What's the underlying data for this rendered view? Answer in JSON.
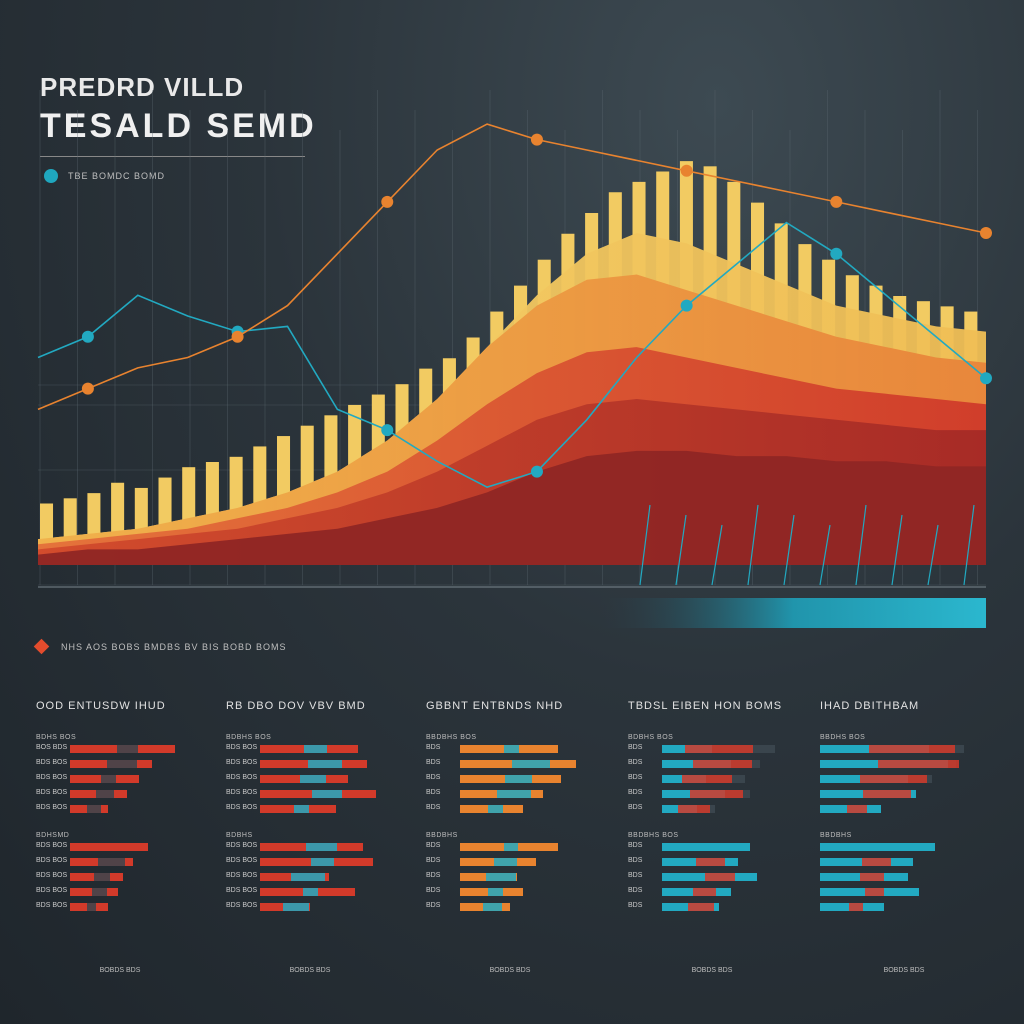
{
  "header": {
    "title_line1": "PREDRD VILLD",
    "title_line2": "TESALD SEMD",
    "legend_label": "TBE BOMDC BOMD"
  },
  "footer_legend": {
    "label": "NHS AOS BOBS BMDBS BV BIS BOBD BOMS"
  },
  "colors": {
    "background": "#2b343b",
    "teal": "#22a9c1",
    "red": "#d23a2a",
    "orange": "#e8832f",
    "yellow": "#efc65a",
    "orange_line": "#e0562a",
    "gold_line": "#e89a2e",
    "grey_track": "#3a454d"
  },
  "chart_data": [
    {
      "type": "area",
      "title": "",
      "x": [
        0,
        1,
        2,
        3,
        4,
        5,
        6,
        7,
        8,
        9,
        10,
        11,
        12,
        13,
        14,
        15,
        16,
        17,
        18,
        19
      ],
      "series": [
        {
          "values": [
            5,
            6,
            7,
            9,
            11,
            14,
            18,
            24,
            32,
            42,
            52,
            60,
            64,
            62,
            58,
            54,
            50,
            48,
            46,
            45
          ]
        },
        {
          "values": [
            5,
            6,
            7,
            9,
            11,
            14,
            18,
            24,
            32,
            42,
            50,
            55,
            56,
            53,
            50,
            47,
            44,
            42,
            40,
            39
          ]
        },
        {
          "values": [
            4,
            5,
            6,
            7,
            9,
            11,
            14,
            18,
            24,
            31,
            37,
            41,
            42,
            40,
            38,
            36,
            34,
            33,
            32,
            31
          ]
        },
        {
          "values": [
            3,
            4,
            5,
            6,
            7,
            9,
            11,
            14,
            18,
            23,
            28,
            31,
            32,
            31,
            30,
            29,
            28,
            27,
            26,
            26
          ]
        },
        {
          "values": [
            2,
            3,
            3,
            4,
            5,
            6,
            7,
            9,
            11,
            14,
            18,
            21,
            22,
            22,
            21,
            21,
            20,
            20,
            19,
            19
          ]
        }
      ],
      "bars": [
        8,
        9,
        10,
        12,
        11,
        13,
        15,
        16,
        17,
        19,
        21,
        23,
        25,
        27,
        29,
        31,
        34,
        36,
        40,
        45,
        50,
        55,
        60,
        64,
        68,
        70,
        72,
        74,
        73,
        70,
        66,
        62,
        58,
        55,
        52,
        50,
        48,
        47,
        46,
        45
      ],
      "lines": [
        {
          "color": "teal",
          "values": [
            40,
            44,
            52,
            48,
            45,
            46,
            30,
            26,
            20,
            15,
            18,
            28,
            40,
            50,
            58,
            66,
            60,
            52,
            44,
            36
          ]
        },
        {
          "color": "orange",
          "values": [
            30,
            34,
            38,
            40,
            44,
            50,
            60,
            70,
            80,
            85,
            82,
            80,
            78,
            76,
            74,
            72,
            70,
            68,
            66,
            64
          ]
        }
      ]
    },
    {
      "type": "bar",
      "panel_title": "OOD ENTUSDW IHUD",
      "groups": [
        {
          "label": "BDHS BOS",
          "rows": [
            {
              "label": "BOS BDS",
              "values": [
                0.83,
                0.28
              ]
            },
            {
              "label": "BDS BOS",
              "values": [
                0.65,
                0.4
              ]
            },
            {
              "label": "BDS BOS",
              "values": [
                0.55,
                0.2
              ]
            },
            {
              "label": "BDS BOS",
              "values": [
                0.45,
                0.25
              ]
            },
            {
              "label": "BDS BOS",
              "values": [
                0.3,
                0.18
              ]
            }
          ]
        },
        {
          "label": "BDHSMD",
          "rows": [
            {
              "label": "BDS BOS",
              "values": [
                0.62,
                0.0
              ]
            },
            {
              "label": "BDS BOS",
              "values": [
                0.5,
                0.35
              ]
            },
            {
              "label": "BDS BOS",
              "values": [
                0.42,
                0.22
              ]
            },
            {
              "label": "BDS BOS",
              "values": [
                0.38,
                0.2
              ]
            },
            {
              "label": "BDS BOS",
              "values": [
                0.3,
                0.12
              ]
            }
          ]
        }
      ],
      "footer": "BOBDS BDS"
    },
    {
      "type": "bar",
      "panel_title": "RB DBO DOV VBV BMD",
      "groups": [
        {
          "label": "BDBHS BOS",
          "rows": [
            {
              "label": "BDS BOS",
              "values": [
                0.78,
                0.3
              ]
            },
            {
              "label": "BDS BOS",
              "values": [
                0.85,
                0.45
              ]
            },
            {
              "label": "BDS BOS",
              "values": [
                0.7,
                0.35
              ]
            },
            {
              "label": "BDS BOS",
              "values": [
                0.92,
                0.4
              ]
            },
            {
              "label": "BDS BOS",
              "values": [
                0.6,
                0.2
              ]
            }
          ]
        },
        {
          "label": "BDBHS",
          "rows": [
            {
              "label": "BDS BOS",
              "values": [
                0.82,
                0.4
              ]
            },
            {
              "label": "BDS BOS",
              "values": [
                0.9,
                0.3
              ]
            },
            {
              "label": "BDS BOS",
              "values": [
                0.55,
                0.45
              ]
            },
            {
              "label": "BDS BOS",
              "values": [
                0.75,
                0.2
              ]
            },
            {
              "label": "BDS BOS",
              "values": [
                0.4,
                0.35
              ]
            }
          ]
        }
      ],
      "footer": "BOBDS BDS"
    },
    {
      "type": "bar",
      "panel_title": "GBBNT ENTBNDS NHD",
      "groups": [
        {
          "label": "BBDBHS BOS",
          "rows": [
            {
              "label": "BDS",
              "values": [
                0.78,
                0.2
              ]
            },
            {
              "label": "BDS",
              "values": [
                0.92,
                0.5
              ]
            },
            {
              "label": "BDS",
              "values": [
                0.8,
                0.35
              ]
            },
            {
              "label": "BDS",
              "values": [
                0.66,
                0.45
              ]
            },
            {
              "label": "BDS",
              "values": [
                0.5,
                0.2
              ]
            }
          ]
        },
        {
          "label": "BBDBHS",
          "rows": [
            {
              "label": "BDS",
              "values": [
                0.78,
                0.18
              ]
            },
            {
              "label": "BDS",
              "values": [
                0.6,
                0.3
              ]
            },
            {
              "label": "BDS",
              "values": [
                0.45,
                0.4
              ]
            },
            {
              "label": "BDS",
              "values": [
                0.5,
                0.2
              ]
            },
            {
              "label": "BDS",
              "values": [
                0.4,
                0.25
              ]
            }
          ]
        }
      ],
      "footer": "BOBDS BDS"
    },
    {
      "type": "bar",
      "panel_title": "TBDSL EIBEN HON BOMS",
      "groups": [
        {
          "label": "BDBHS BOS",
          "rows": [
            {
              "label": "BDS",
              "values": [
                0.4,
                0.9
              ]
            },
            {
              "label": "BDS",
              "values": [
                0.55,
                0.78
              ]
            },
            {
              "label": "BDS",
              "values": [
                0.35,
                0.66
              ]
            },
            {
              "label": "BDS",
              "values": [
                0.5,
                0.7
              ]
            },
            {
              "label": "BDS",
              "values": [
                0.28,
                0.42
              ]
            }
          ]
        },
        {
          "label": "BBDBHS BOS",
          "rows": [
            {
              "label": "BDS",
              "values": [
                0.7,
                0.0
              ]
            },
            {
              "label": "BDS",
              "values": [
                0.6,
                0.38
              ]
            },
            {
              "label": "BDS",
              "values": [
                0.75,
                0.4
              ]
            },
            {
              "label": "BDS",
              "values": [
                0.55,
                0.3
              ]
            },
            {
              "label": "BDS",
              "values": [
                0.45,
                0.35
              ]
            }
          ]
        }
      ],
      "footer": "BOBDS BDS"
    },
    {
      "type": "bar",
      "panel_title": "IHAD DBITHBAM",
      "groups": [
        {
          "label": "BBDHS BOS",
          "rows": [
            {
              "label": "",
              "values": [
                0.68,
                0.9
              ]
            },
            {
              "label": "",
              "values": [
                0.8,
                0.85
              ]
            },
            {
              "label": "",
              "values": [
                0.55,
                0.7
              ]
            },
            {
              "label": "",
              "values": [
                0.6,
                0.5
              ]
            },
            {
              "label": "",
              "values": [
                0.38,
                0.2
              ]
            }
          ]
        },
        {
          "label": "BBDBHS",
          "rows": [
            {
              "label": "",
              "values": [
                0.72,
                0.0
              ]
            },
            {
              "label": "",
              "values": [
                0.58,
                0.3
              ]
            },
            {
              "label": "",
              "values": [
                0.55,
                0.25
              ]
            },
            {
              "label": "",
              "values": [
                0.62,
                0.2
              ]
            },
            {
              "label": "",
              "values": [
                0.4,
                0.15
              ]
            }
          ]
        }
      ],
      "footer": "BOBDS BDS"
    }
  ]
}
